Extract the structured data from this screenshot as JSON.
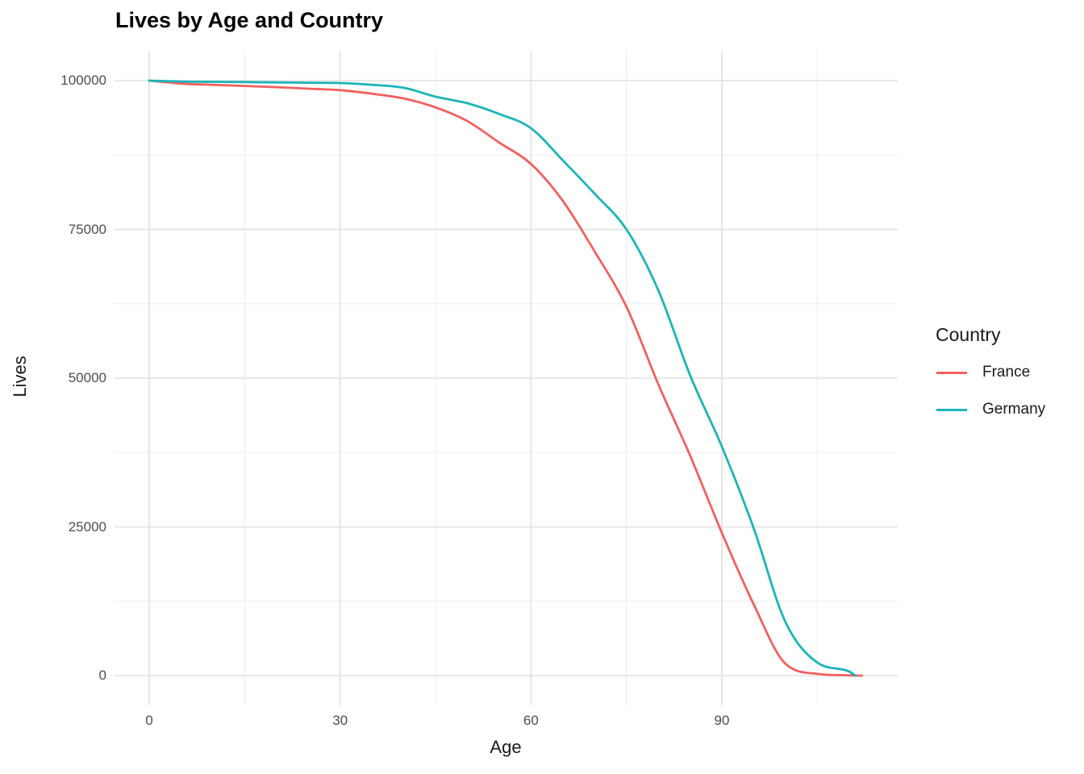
{
  "page": {
    "background": "#ffffff"
  },
  "title": "Lives by Age and Country",
  "legend": {
    "title": "Country"
  },
  "colors": {
    "france": "#F2605E",
    "germany": "#1AB5B8",
    "grid_major": "#E4E4E4",
    "grid_minor": "#F0F0F0",
    "tick_label": "#4D4D4D",
    "text": "#1A1A1A",
    "background": "#FFFFFF"
  },
  "chart_data": {
    "type": "line",
    "title": "Lives by Age and Country",
    "xlabel": "Age",
    "ylabel": "Lives",
    "x_ticks": [
      0,
      30,
      60,
      90
    ],
    "x_minor_ticks": [
      15,
      45,
      75,
      105
    ],
    "y_ticks": [
      0,
      25000,
      50000,
      75000,
      100000
    ],
    "y_minor_ticks": [
      12500,
      37500,
      62500,
      87500
    ],
    "xlim": [
      -5.6,
      117.6
    ],
    "ylim": [
      -5000,
      105000
    ],
    "grid": true,
    "legend_position": "right",
    "legend_title": "Country",
    "series": [
      {
        "name": "France",
        "color": "#F2605E",
        "points": [
          [
            0,
            100000
          ],
          [
            5,
            99500
          ],
          [
            10,
            99300
          ],
          [
            15,
            99100
          ],
          [
            20,
            98900
          ],
          [
            25,
            98650
          ],
          [
            30,
            98400
          ],
          [
            35,
            97800
          ],
          [
            40,
            97000
          ],
          [
            45,
            95500
          ],
          [
            50,
            93200
          ],
          [
            55,
            89600
          ],
          [
            60,
            86000
          ],
          [
            65,
            79800
          ],
          [
            70,
            71300
          ],
          [
            75,
            62000
          ],
          [
            80,
            49000
          ],
          [
            85,
            37000
          ],
          [
            90,
            24000
          ],
          [
            95,
            12000
          ],
          [
            100,
            2000
          ],
          [
            105,
            300
          ],
          [
            110,
            50
          ],
          [
            112,
            0
          ]
        ]
      },
      {
        "name": "Germany",
        "color": "#1AB5B8",
        "points": [
          [
            0,
            100000
          ],
          [
            5,
            99850
          ],
          [
            10,
            99800
          ],
          [
            15,
            99750
          ],
          [
            20,
            99700
          ],
          [
            25,
            99650
          ],
          [
            30,
            99600
          ],
          [
            35,
            99300
          ],
          [
            40,
            98800
          ],
          [
            45,
            97300
          ],
          [
            50,
            96200
          ],
          [
            55,
            94400
          ],
          [
            60,
            92000
          ],
          [
            65,
            86600
          ],
          [
            70,
            81000
          ],
          [
            75,
            75000
          ],
          [
            80,
            64800
          ],
          [
            85,
            50500
          ],
          [
            90,
            38500
          ],
          [
            95,
            24800
          ],
          [
            100,
            9000
          ],
          [
            105,
            2200
          ],
          [
            110,
            700
          ],
          [
            111,
            0
          ]
        ]
      }
    ]
  }
}
